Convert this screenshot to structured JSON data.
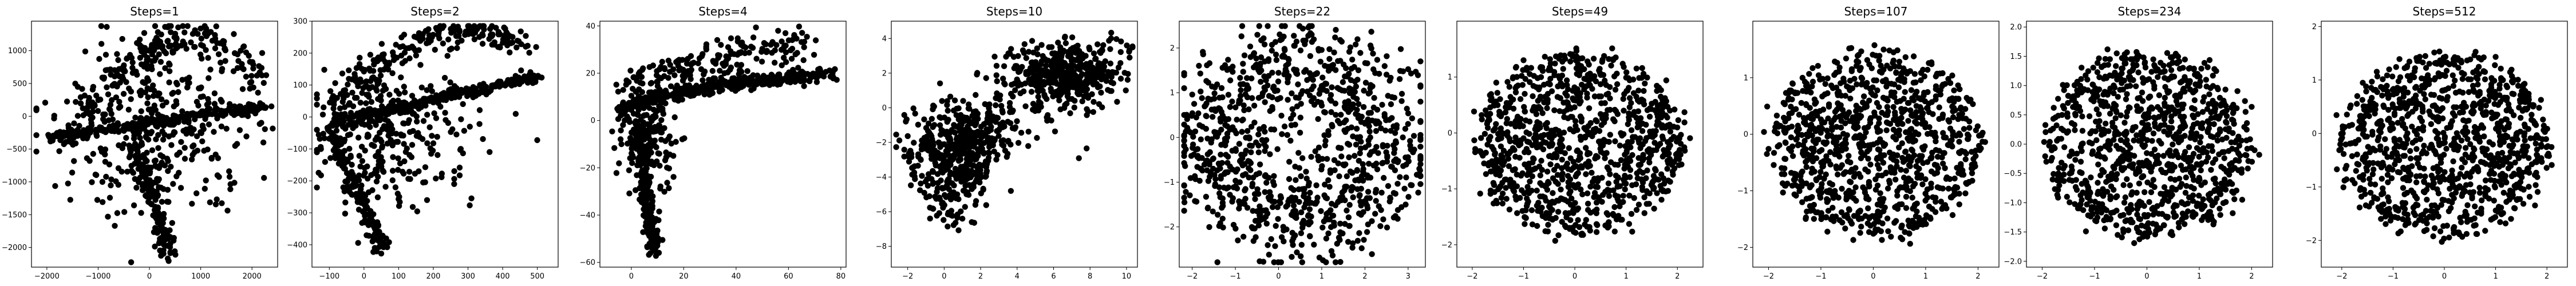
{
  "figure": {
    "background": "#ffffff",
    "marker_color": "#000000"
  },
  "chart_data": [
    {
      "type": "scatter",
      "title": "Steps=1",
      "xlabel": "",
      "ylabel": "",
      "xlim": [
        -2300,
        2500
      ],
      "ylim": [
        -2300,
        1450
      ],
      "xticks": [
        -2000,
        -1000,
        0,
        1000,
        2000
      ],
      "yticks": [
        -2000,
        -1500,
        -1000,
        -500,
        0,
        500,
        1000
      ],
      "point_count": 1000,
      "shape": "s1",
      "grid": false
    },
    {
      "type": "scatter",
      "title": "Steps=2",
      "xlabel": "",
      "ylabel": "",
      "xlim": [
        -150,
        560
      ],
      "ylim": [
        -470,
        300
      ],
      "xticks": [
        -100,
        0,
        100,
        200,
        300,
        400,
        500
      ],
      "yticks": [
        -400,
        -300,
        -200,
        -100,
        0,
        100,
        200,
        300
      ],
      "point_count": 1000,
      "shape": "s2",
      "grid": false
    },
    {
      "type": "scatter",
      "title": "Steps=4",
      "xlabel": "",
      "ylabel": "",
      "xlim": [
        -12,
        82
      ],
      "ylim": [
        -62,
        42
      ],
      "xticks": [
        0,
        20,
        40,
        60,
        80
      ],
      "yticks": [
        -60,
        -40,
        -20,
        0,
        20,
        40
      ],
      "point_count": 1000,
      "shape": "s4",
      "grid": false
    },
    {
      "type": "scatter",
      "title": "Steps=10",
      "xlabel": "",
      "ylabel": "",
      "xlim": [
        -2.9,
        10.6
      ],
      "ylim": [
        -9.2,
        5.0
      ],
      "xticks": [
        -2,
        0,
        2,
        4,
        6,
        8,
        10
      ],
      "yticks": [
        -8,
        -6,
        -4,
        -2,
        0,
        2,
        4
      ],
      "point_count": 1000,
      "shape": "s10",
      "grid": false
    },
    {
      "type": "scatter",
      "title": "Steps=22",
      "xlabel": "",
      "ylabel": "",
      "xlim": [
        -2.3,
        3.4
      ],
      "ylim": [
        -2.9,
        2.6
      ],
      "xticks": [
        -2,
        -1,
        0,
        1,
        2,
        3
      ],
      "yticks": [
        -2,
        -1,
        0,
        1,
        2
      ],
      "point_count": 1000,
      "shape": "s22",
      "grid": false
    },
    {
      "type": "scatter",
      "title": "Steps=49",
      "xlabel": "",
      "ylabel": "",
      "xlim": [
        -2.3,
        2.5
      ],
      "ylim": [
        -2.4,
        2.0
      ],
      "xticks": [
        -2,
        -1,
        0,
        1,
        2
      ],
      "yticks": [
        -2,
        -1,
        0,
        1
      ],
      "point_count": 1000,
      "shape": "ring",
      "grid": false
    },
    {
      "type": "scatter",
      "title": "Steps=107",
      "xlabel": "",
      "ylabel": "",
      "xlim": [
        -2.3,
        2.4
      ],
      "ylim": [
        -2.35,
        2.0
      ],
      "xticks": [
        -2,
        -1,
        0,
        1,
        2
      ],
      "yticks": [
        -2,
        -1,
        0,
        1
      ],
      "point_count": 1000,
      "shape": "ring",
      "grid": false
    },
    {
      "type": "scatter",
      "title": "Steps=234",
      "xlabel": "",
      "ylabel": "",
      "xlim": [
        -2.3,
        2.4
      ],
      "ylim": [
        -2.1,
        2.1
      ],
      "xticks": [
        -2,
        -1,
        0,
        1,
        2
      ],
      "yticks": [
        -2.0,
        -1.5,
        -1.0,
        -0.5,
        0.0,
        0.5,
        1.0,
        1.5,
        2.0
      ],
      "point_count": 1000,
      "shape": "ring",
      "grid": false
    },
    {
      "type": "scatter",
      "title": "Steps=512",
      "xlabel": "",
      "ylabel": "",
      "xlim": [
        -2.4,
        2.4
      ],
      "ylim": [
        -2.5,
        2.1
      ],
      "xticks": [
        -2,
        -1,
        0,
        1,
        2
      ],
      "yticks": [
        -2,
        -1,
        0,
        1,
        2
      ],
      "point_count": 1000,
      "shape": "ring",
      "grid": false
    }
  ]
}
